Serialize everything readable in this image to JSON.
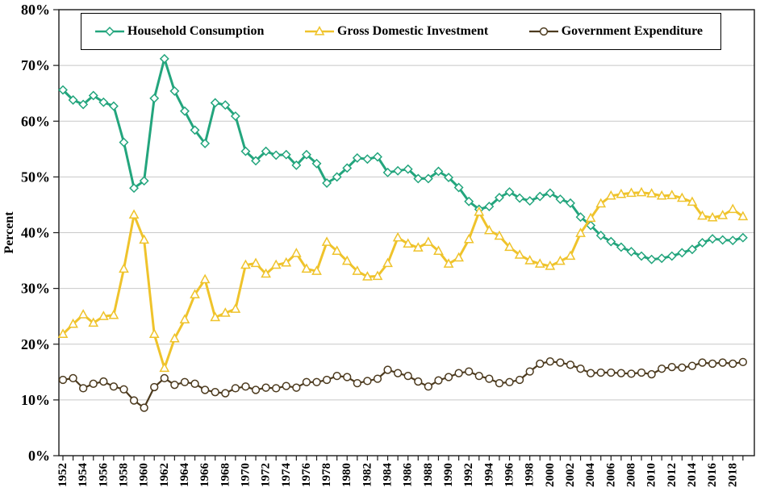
{
  "figure": {
    "background": "#ffffff",
    "grid_color": "#c8c8c8",
    "axis_color": "#1a1a1a",
    "legend_border_color": "#000000"
  },
  "chart_data": {
    "type": "line",
    "title": "",
    "xlabel": "",
    "ylabel": "Percent",
    "ylim": [
      0,
      80
    ],
    "ytick_step": 10,
    "ytick_format": "percent",
    "xtick_label_step": 2,
    "grid": true,
    "legend_position": "top",
    "x": [
      1952,
      1953,
      1954,
      1955,
      1956,
      1957,
      1958,
      1959,
      1960,
      1961,
      1962,
      1963,
      1964,
      1965,
      1966,
      1967,
      1968,
      1969,
      1970,
      1971,
      1972,
      1973,
      1974,
      1975,
      1976,
      1977,
      1978,
      1979,
      1980,
      1981,
      1982,
      1983,
      1984,
      1985,
      1986,
      1987,
      1988,
      1989,
      1990,
      1991,
      1992,
      1993,
      1994,
      1995,
      1996,
      1997,
      1998,
      1999,
      2000,
      2001,
      2002,
      2003,
      2004,
      2005,
      2006,
      2007,
      2008,
      2009,
      2010,
      2011,
      2012,
      2013,
      2014,
      2015,
      2016,
      2017,
      2018,
      2019
    ],
    "series": [
      {
        "name": "Household Consumption",
        "color": "#23a57d",
        "marker": "diamond",
        "line_width": 3,
        "values": [
          65.6,
          63.8,
          63.0,
          64.6,
          63.4,
          62.7,
          56.2,
          48.0,
          49.3,
          64.1,
          71.2,
          65.4,
          61.8,
          58.4,
          56.0,
          63.3,
          62.9,
          60.9,
          54.6,
          52.9,
          54.6,
          53.9,
          54.0,
          52.1,
          54.0,
          52.4,
          48.9,
          50.0,
          51.6,
          53.4,
          53.2,
          53.6,
          50.8,
          51.1,
          51.4,
          49.7,
          49.7,
          51.0,
          49.9,
          48.1,
          45.6,
          44.2,
          44.7,
          46.3,
          47.3,
          46.2,
          45.7,
          46.5,
          47.1,
          46.0,
          45.3,
          42.8,
          41.3,
          39.5,
          38.4,
          37.4,
          36.6,
          35.8,
          35.2,
          35.4,
          35.8,
          36.4,
          37.0,
          38.2,
          38.9,
          38.7,
          38.6,
          39.1
        ]
      },
      {
        "name": "Gross Domestic Investment",
        "color": "#efc32b",
        "marker": "triangle",
        "line_width": 3,
        "values": [
          21.8,
          23.6,
          25.3,
          23.8,
          25.0,
          25.2,
          33.5,
          43.2,
          38.7,
          21.8,
          15.7,
          21.0,
          24.4,
          28.9,
          31.6,
          24.8,
          25.6,
          26.3,
          34.2,
          34.5,
          32.6,
          34.2,
          34.6,
          36.3,
          33.5,
          33.1,
          38.3,
          36.7,
          34.9,
          33.1,
          32.1,
          32.2,
          34.5,
          39.1,
          38.0,
          37.3,
          38.3,
          36.7,
          34.4,
          35.5,
          38.8,
          43.7,
          40.4,
          39.4,
          37.4,
          36.0,
          35.0,
          34.4,
          34.0,
          34.9,
          35.8,
          39.9,
          42.6,
          45.2,
          46.6,
          46.9,
          47.1,
          47.2,
          47.0,
          46.6,
          46.7,
          46.2,
          45.5,
          43.0,
          42.7,
          43.1,
          44.2,
          42.9
        ]
      },
      {
        "name": "Government Expenditure",
        "color": "#4c3a1e",
        "marker": "circle",
        "line_width": 2.2,
        "values": [
          13.6,
          13.9,
          12.1,
          12.9,
          13.3,
          12.4,
          11.9,
          9.9,
          8.6,
          12.3,
          13.9,
          12.7,
          13.2,
          12.9,
          11.8,
          11.4,
          11.2,
          12.1,
          12.4,
          11.8,
          12.2,
          12.1,
          12.5,
          12.2,
          13.2,
          13.2,
          13.6,
          14.3,
          14.1,
          13.0,
          13.4,
          13.8,
          15.4,
          14.8,
          14.3,
          13.3,
          12.4,
          13.5,
          14.1,
          14.8,
          15.1,
          14.3,
          13.8,
          13.0,
          13.2,
          13.6,
          15.1,
          16.5,
          16.9,
          16.7,
          16.3,
          15.6,
          14.8,
          14.9,
          14.9,
          14.8,
          14.7,
          14.9,
          14.6,
          15.6,
          15.9,
          15.8,
          16.1,
          16.7,
          16.5,
          16.7,
          16.5,
          16.8
        ]
      }
    ]
  }
}
